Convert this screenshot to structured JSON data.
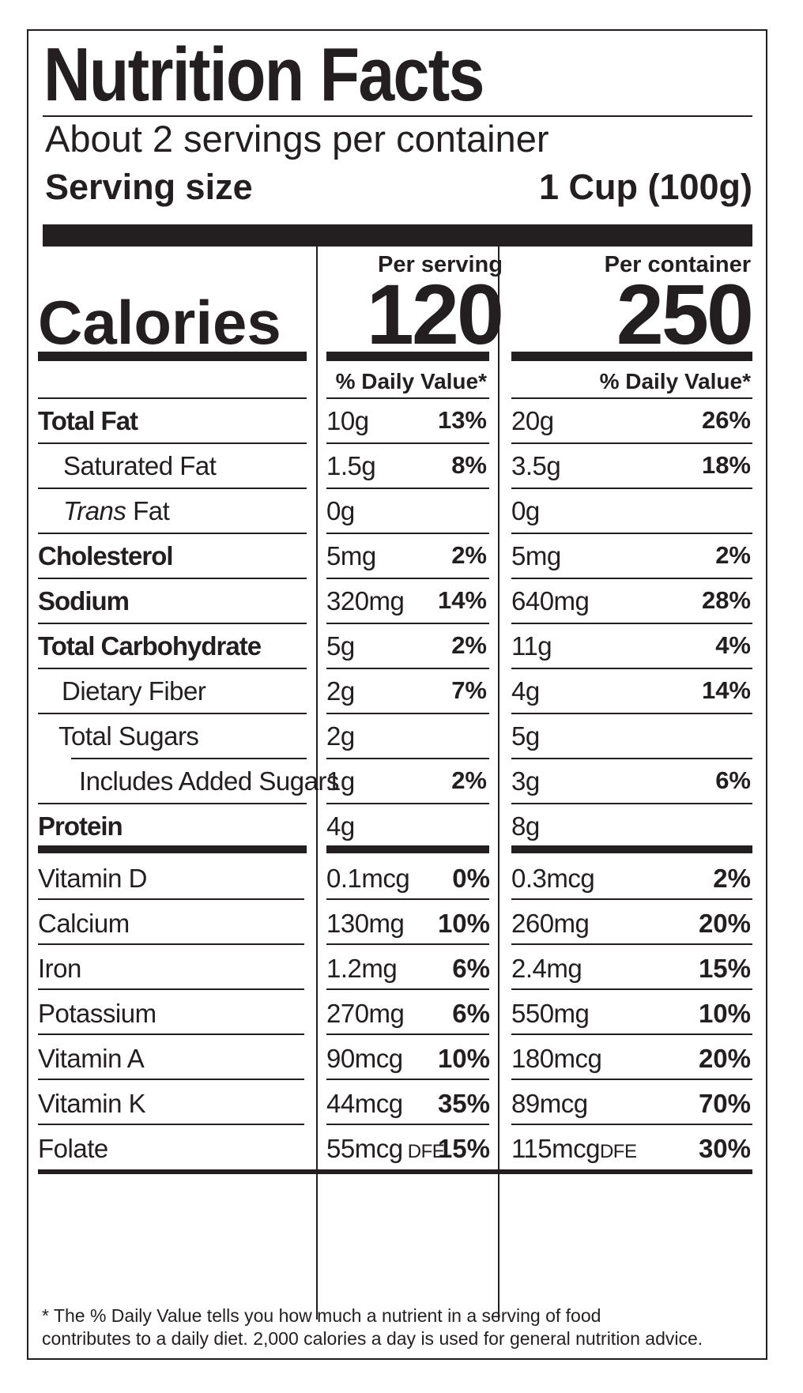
{
  "title": "Nutrition Facts",
  "servings_per_container": "About 2 servings per container",
  "serving_size_label": "Serving size",
  "serving_size_value": "1 Cup (100g)",
  "calories_label": "Calories",
  "per_serving_label": "Per serving",
  "per_container_label": "Per container",
  "calories_per_serving": "120",
  "calories_per_container": "250",
  "dv_header": "% Daily Value*",
  "nutrients": [
    {
      "name": "Total Fat",
      "serving_amount": "10g",
      "serving_dv": "13%",
      "container_amount": "20g",
      "container_dv": "26%"
    },
    {
      "name": "Saturated Fat",
      "serving_amount": "1.5g",
      "serving_dv": "8%",
      "container_amount": "3.5g",
      "container_dv": "18%"
    },
    {
      "name_italic": "Trans",
      "name": " Fat",
      "serving_amount": "0g",
      "serving_dv": "",
      "container_amount": "0g",
      "container_dv": ""
    },
    {
      "name": "Cholesterol",
      "serving_amount": "5mg",
      "serving_dv": "2%",
      "container_amount": "5mg",
      "container_dv": "2%"
    },
    {
      "name": "Sodium",
      "serving_amount": "320mg",
      "serving_dv": "14%",
      "container_amount": "640mg",
      "container_dv": "28%"
    },
    {
      "name": "Total Carbohydrate",
      "serving_amount": "5g",
      "serving_dv": "2%",
      "container_amount": "11g",
      "container_dv": "4%"
    },
    {
      "name": "Dietary Fiber",
      "serving_amount": "2g",
      "serving_dv": "7%",
      "container_amount": "4g",
      "container_dv": "14%"
    },
    {
      "name": "Total Sugars",
      "serving_amount": "2g",
      "serving_dv": "",
      "container_amount": "5g",
      "container_dv": ""
    },
    {
      "name": "Includes Added Sugars",
      "serving_amount": "1g",
      "serving_dv": "2%",
      "container_amount": "3g",
      "container_dv": "6%"
    },
    {
      "name": "Protein",
      "serving_amount": "4g",
      "serving_dv": "",
      "container_amount": "8g",
      "container_dv": ""
    }
  ],
  "vitamins": [
    {
      "name": "Vitamin D",
      "serving_amount": "0.1mcg",
      "serving_dv": "0%",
      "container_amount": "0.3mcg",
      "container_dv": "2%"
    },
    {
      "name": "Calcium",
      "serving_amount": "130mg",
      "serving_dv": "10%",
      "container_amount": "260mg",
      "container_dv": "20%"
    },
    {
      "name": "Iron",
      "serving_amount": "1.2mg",
      "serving_dv": "6%",
      "container_amount": "2.4mg",
      "container_dv": "15%"
    },
    {
      "name": "Potassium",
      "serving_amount": "270mg",
      "serving_dv": "6%",
      "container_amount": "550mg",
      "container_dv": "10%"
    },
    {
      "name": "Vitamin A",
      "serving_amount": "90mcg",
      "serving_dv": "10%",
      "container_amount": "180mcg",
      "container_dv": "20%"
    },
    {
      "name": "Vitamin K",
      "serving_amount": "44mcg",
      "serving_dv": "35%",
      "container_amount": "89mcg",
      "container_dv": "70%"
    },
    {
      "name": "Folate",
      "serving_amount": "55mcg",
      "serving_unit_suffix": "DFE",
      "serving_dv": "15%",
      "container_amount": "115mcg",
      "container_unit_suffix": "DFE",
      "container_dv": "30%"
    }
  ],
  "footnote_line1": "* The % Daily Value tells you how much a nutrient in a serving of food",
  "footnote_line2": "contributes to a daily diet. 2,000 calories a  day is used for general nutrition advice."
}
